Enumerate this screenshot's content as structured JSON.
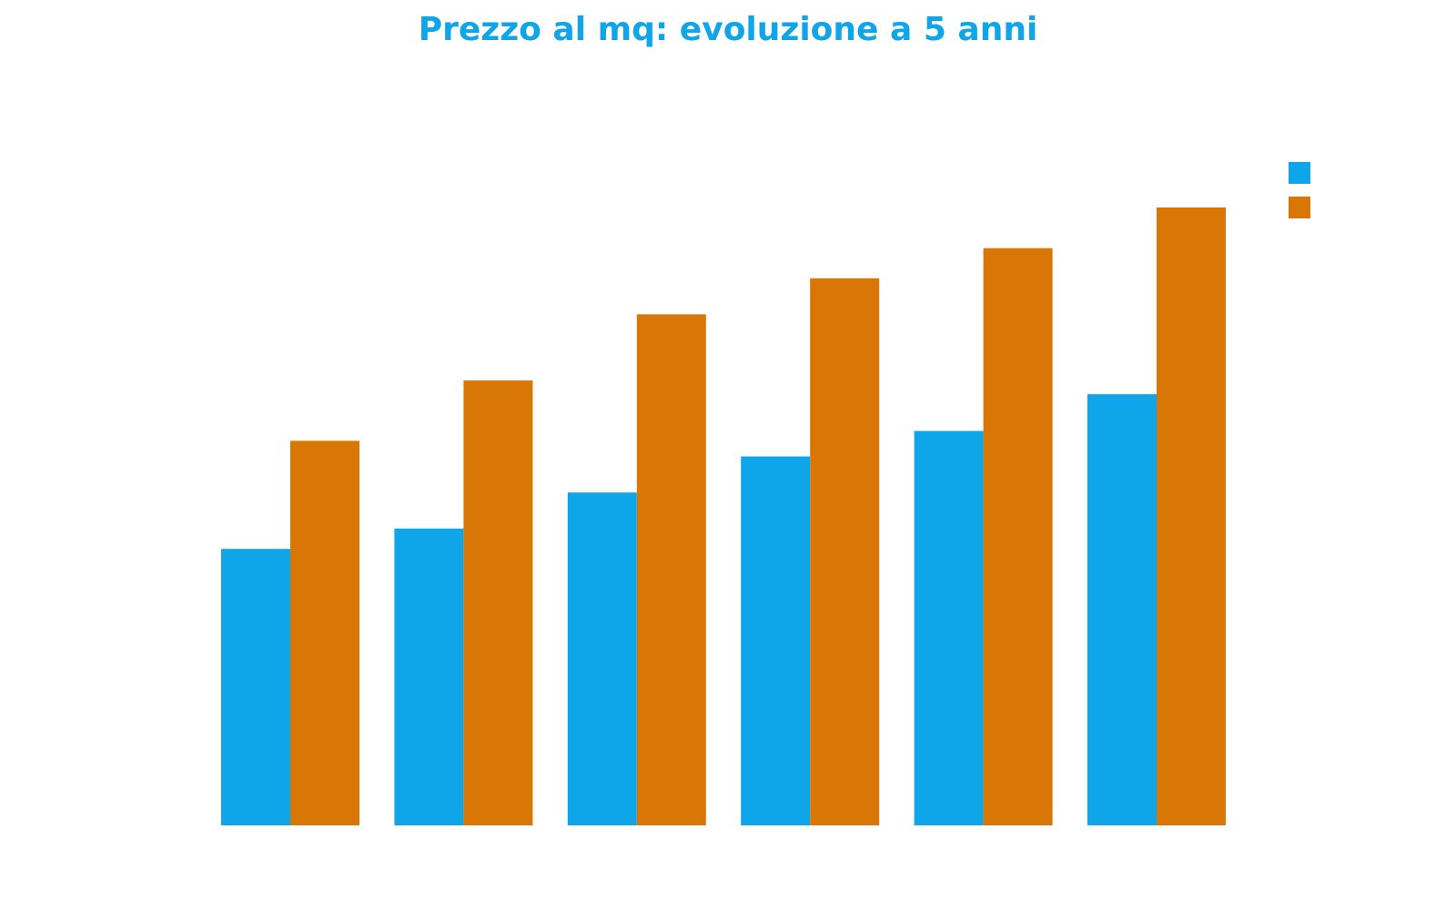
{
  "chart_data": {
    "type": "bar",
    "title": "Prezzo al mq: evoluzione a 5 anni",
    "xlabel": "",
    "ylabel": "",
    "categories": [
      "",
      "",
      "",
      "",
      "",
      ""
    ],
    "series": [
      {
        "color": "#0ea5e9",
        "values": [
          42.2,
          45.3,
          50.8,
          56.3,
          60.2,
          65.8
        ]
      },
      {
        "color": "#d97706",
        "values": [
          58.7,
          67.9,
          78.0,
          83.5,
          88.1,
          94.3
        ]
      }
    ],
    "ylim": [
      0,
      100
    ],
    "grid": false,
    "legend": "top-right"
  }
}
